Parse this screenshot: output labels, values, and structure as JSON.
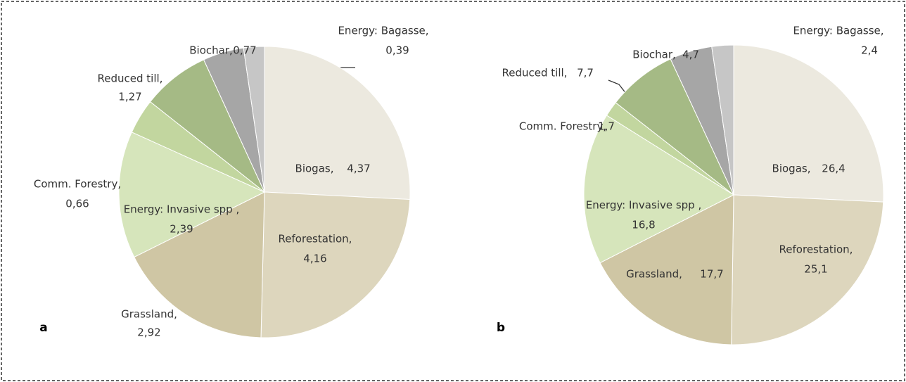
{
  "chart_data": [
    {
      "type": "pie",
      "label": "a",
      "categories": [
        "Biogas,",
        "Reforestation,",
        "Grassland,",
        "Energy: Invasive spp ,",
        "Comm. Forestry,",
        "Reduced till,",
        "Biochar,",
        "Energy: Bagasse,"
      ],
      "values": [
        4.37,
        4.16,
        2.92,
        2.39,
        0.66,
        1.27,
        0.77,
        0.39
      ],
      "value_labels": [
        "4,37",
        "4,16",
        "2,92",
        "2,39",
        "0,66",
        "1,27",
        "0,77",
        "0,39"
      ],
      "colors": [
        "#ece9df",
        "#ddd6bd",
        "#cfc6a4",
        "#d6e5bb",
        "#c2d69f",
        "#a5ba85",
        "#a6a6a6",
        "#c6c6c6"
      ]
    },
    {
      "type": "pie",
      "label": "b",
      "categories": [
        "Biogas,",
        "Reforestation,",
        "Grassland,",
        "Energy: Invasive spp ,",
        "Comm. Forestry,",
        "Reduced till,",
        "Biochar,",
        "Energy: Bagasse,"
      ],
      "values": [
        26.4,
        25.1,
        17.7,
        16.8,
        1.7,
        7.7,
        4.7,
        2.4
      ],
      "value_labels": [
        "26,4",
        "25,1",
        "17,7",
        "16,8",
        "1,7",
        "7,7",
        "4,7",
        "2,4"
      ],
      "colors": [
        "#ece9df",
        "#ddd6bd",
        "#cfc6a4",
        "#d6e5bb",
        "#c2d69f",
        "#a5ba85",
        "#a6a6a6",
        "#c6c6c6"
      ]
    }
  ]
}
